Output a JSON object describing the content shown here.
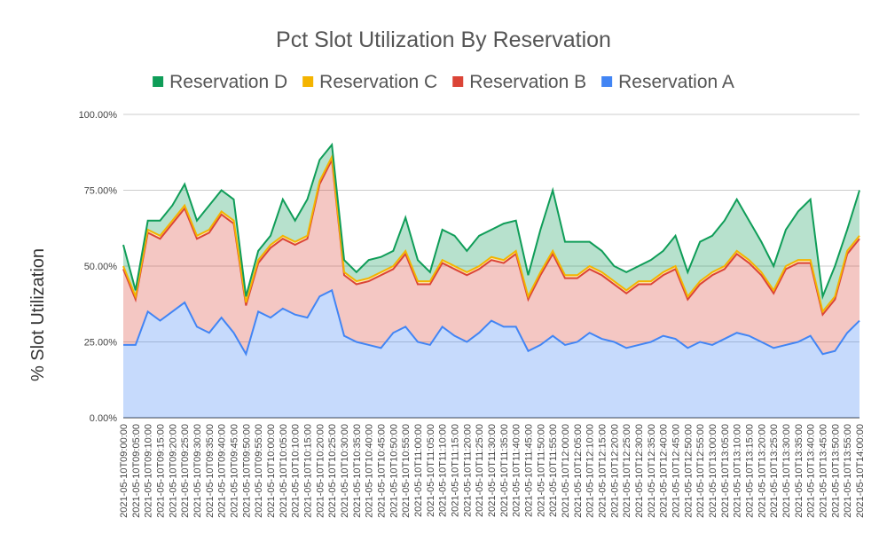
{
  "chart_data": {
    "type": "stacked-area",
    "title": "Pct Slot Utilization By Reservation",
    "y_label": "% Slot Utilization",
    "categories": [
      "2021-05-10T09:00:00",
      "2021-05-10T09:05:00",
      "2021-05-10T09:10:00",
      "2021-05-10T09:15:00",
      "2021-05-10T09:20:00",
      "2021-05-10T09:25:00",
      "2021-05-10T09:30:00",
      "2021-05-10T09:35:00",
      "2021-05-10T09:40:00",
      "2021-05-10T09:45:00",
      "2021-05-10T09:50:00",
      "2021-05-10T09:55:00",
      "2021-05-10T10:00:00",
      "2021-05-10T10:05:00",
      "2021-05-10T10:10:00",
      "2021-05-10T10:15:00",
      "2021-05-10T10:20:00",
      "2021-05-10T10:25:00",
      "2021-05-10T10:30:00",
      "2021-05-10T10:35:00",
      "2021-05-10T10:40:00",
      "2021-05-10T10:45:00",
      "2021-05-10T10:50:00",
      "2021-05-10T10:55:00",
      "2021-05-10T11:00:00",
      "2021-05-10T11:05:00",
      "2021-05-10T11:10:00",
      "2021-05-10T11:15:00",
      "2021-05-10T11:20:00",
      "2021-05-10T11:25:00",
      "2021-05-10T11:30:00",
      "2021-05-10T11:35:00",
      "2021-05-10T11:40:00",
      "2021-05-10T11:45:00",
      "2021-05-10T11:50:00",
      "2021-05-10T11:55:00",
      "2021-05-10T12:00:00",
      "2021-05-10T12:05:00",
      "2021-05-10T12:10:00",
      "2021-05-10T12:15:00",
      "2021-05-10T12:20:00",
      "2021-05-10T12:25:00",
      "2021-05-10T12:30:00",
      "2021-05-10T12:35:00",
      "2021-05-10T12:40:00",
      "2021-05-10T12:45:00",
      "2021-05-10T12:50:00",
      "2021-05-10T12:55:00",
      "2021-05-10T13:00:00",
      "2021-05-10T13:05:00",
      "2021-05-10T13:10:00",
      "2021-05-10T13:15:00",
      "2021-05-10T13:20:00",
      "2021-05-10T13:25:00",
      "2021-05-10T13:30:00",
      "2021-05-10T13:35:00",
      "2021-05-10T13:40:00",
      "2021-05-10T13:45:00",
      "2021-05-10T13:50:00",
      "2021-05-10T13:55:00",
      "2021-05-10T14:00:00"
    ],
    "series": [
      {
        "name": "Reservation A",
        "color": "#4285f4",
        "values": [
          24,
          24,
          35,
          32,
          35,
          38,
          30,
          28,
          33,
          28,
          21,
          35,
          33,
          36,
          34,
          33,
          40,
          42,
          27,
          25,
          24,
          23,
          28,
          30,
          25,
          24,
          30,
          27,
          25,
          28,
          32,
          30,
          30,
          22,
          24,
          27,
          24,
          25,
          28,
          26,
          25,
          23,
          24,
          25,
          27,
          26,
          23,
          25,
          24,
          26,
          28,
          27,
          25,
          23,
          24,
          25,
          27,
          21,
          22,
          28,
          32
        ]
      },
      {
        "name": "Reservation B",
        "color": "#db4437",
        "values": [
          25,
          15,
          26,
          27,
          29,
          31,
          29,
          33,
          34,
          36,
          16,
          16,
          23,
          23,
          23,
          26,
          37,
          43,
          20,
          19,
          21,
          24,
          21,
          24,
          19,
          20,
          21,
          22,
          22,
          21,
          20,
          21,
          24,
          17,
          23,
          27,
          22,
          21,
          21,
          21,
          19,
          18,
          20,
          19,
          20,
          23,
          16,
          19,
          23,
          23,
          26,
          24,
          22,
          18,
          25,
          26,
          24,
          13,
          17,
          26,
          27
        ]
      },
      {
        "name": "Reservation C",
        "color": "#f4b400",
        "values": [
          1,
          1,
          1,
          1,
          1,
          1,
          1,
          1,
          1,
          1,
          1,
          1,
          1,
          1,
          1,
          1,
          1,
          1,
          1,
          1,
          1,
          1,
          1,
          1,
          1,
          1,
          1,
          1,
          1,
          1,
          1,
          1,
          1,
          1,
          1,
          1,
          1,
          1,
          1,
          1,
          1,
          1,
          1,
          1,
          1,
          1,
          1,
          1,
          1,
          1,
          1,
          1,
          1,
          1,
          1,
          1,
          1,
          1,
          1,
          1,
          1
        ]
      },
      {
        "name": "Reservation D",
        "color": "#0f9d58",
        "values": [
          7,
          2,
          3,
          5,
          5,
          7,
          5,
          8,
          7,
          7,
          2,
          3,
          3,
          12,
          7,
          12,
          7,
          4,
          4,
          3,
          6,
          5,
          5,
          11,
          7,
          3,
          10,
          10,
          7,
          10,
          9,
          12,
          10,
          7,
          14,
          20,
          11,
          11,
          8,
          7,
          5,
          6,
          5,
          7,
          7,
          10,
          8,
          13,
          12,
          15,
          17,
          13,
          10,
          8,
          12,
          16,
          20,
          5,
          10,
          7,
          15
        ]
      }
    ],
    "ylim": [
      0,
      100
    ],
    "yticks": [
      {
        "value": 0,
        "label": "0.00%"
      },
      {
        "value": 25,
        "label": "25.00%"
      },
      {
        "value": 50,
        "label": "50.00%"
      },
      {
        "value": 75,
        "label": "75.00%"
      },
      {
        "value": 100,
        "label": "100.00%"
      }
    ],
    "grid": true,
    "legend": "top"
  }
}
